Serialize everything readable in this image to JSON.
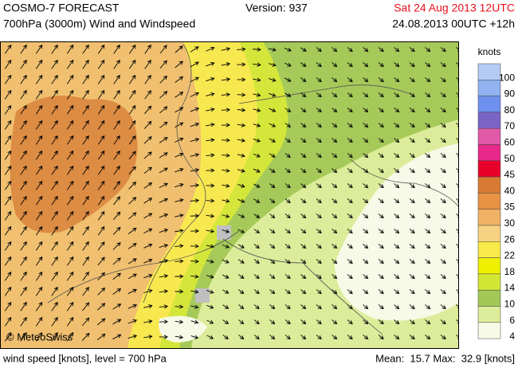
{
  "header": {
    "title": "COSMO-7 FORECAST",
    "subtitle": "700hPa (3000m) Wind and Windspeed",
    "version": "Version: 937",
    "valid_time": "Sat 24 Aug 2013 12UTC",
    "run_time": "24.08.2013 00UTC +12h"
  },
  "legend": {
    "title": "knots",
    "items": [
      {
        "label": "100",
        "color": "#b4ccf4"
      },
      {
        "label": "90",
        "color": "#92b2f2"
      },
      {
        "label": "80",
        "color": "#6e90ee"
      },
      {
        "label": "70",
        "color": "#7a64c6"
      },
      {
        "label": "60",
        "color": "#e05aa8"
      },
      {
        "label": "50",
        "color": "#e8288a"
      },
      {
        "label": "45",
        "color": "#e8002a"
      },
      {
        "label": "40",
        "color": "#d87a34"
      },
      {
        "label": "35",
        "color": "#e89244"
      },
      {
        "label": "30",
        "color": "#f0b264"
      },
      {
        "label": "26",
        "color": "#f6d282"
      },
      {
        "label": "22",
        "color": "#f8ea48"
      },
      {
        "label": "18",
        "color": "#eef000"
      },
      {
        "label": "14",
        "color": "#d2e634"
      },
      {
        "label": "10",
        "color": "#a2c856"
      },
      {
        "label": "6",
        "color": "#dcec9a"
      },
      {
        "label": "4",
        "color": "#f6fae6"
      }
    ]
  },
  "copyright": "© MeteoSwiss",
  "footer": {
    "left": "wind speed [knots], level = 700 hPa",
    "right": "Mean:  15.7 Max:  32.9 [knots]"
  }
}
